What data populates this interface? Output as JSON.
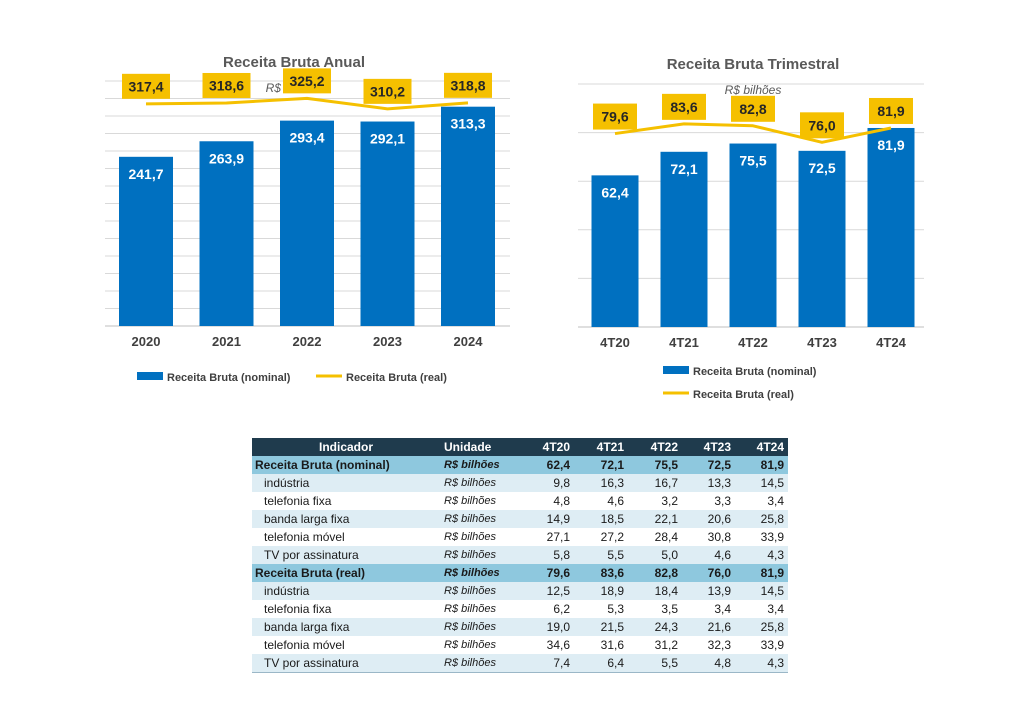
{
  "chart_data": [
    {
      "type": "bar",
      "title": "Receita Bruta Anual",
      "subtitle": "R$ bilhões",
      "categories": [
        "2020",
        "2021",
        "2022",
        "2023",
        "2024"
      ],
      "series": [
        {
          "name": "Receita Bruta (nominal)",
          "type": "bar",
          "color": "#0070c0",
          "values": [
            241.7,
            263.9,
            293.4,
            292.1,
            313.3
          ],
          "labels": [
            "241,7",
            "263,9",
            "293,4",
            "292,1",
            "313,3"
          ]
        },
        {
          "name": "Receita Bruta (real)",
          "type": "line",
          "color": "#f5c000",
          "values": [
            317.4,
            318.6,
            325.2,
            310.2,
            318.8
          ],
          "labels": [
            "317,4",
            "318,6",
            "325,2",
            "310,2",
            "318,8"
          ]
        }
      ],
      "ylim": [
        0,
        350
      ],
      "grid": true,
      "legend": "bottom"
    },
    {
      "type": "bar",
      "title": "Receita Bruta Trimestral",
      "subtitle": "R$ bilhões",
      "categories": [
        "4T20",
        "4T21",
        "4T22",
        "4T23",
        "4T24"
      ],
      "series": [
        {
          "name": "Receita Bruta (nominal)",
          "type": "bar",
          "color": "#0070c0",
          "values": [
            62.4,
            72.1,
            75.5,
            72.5,
            81.9
          ],
          "labels": [
            "62,4",
            "72,1",
            "75,5",
            "72,5",
            "81,9"
          ]
        },
        {
          "name": "Receita Bruta (real)",
          "type": "line",
          "color": "#f5c000",
          "values": [
            79.6,
            83.6,
            82.8,
            76.0,
            81.9
          ],
          "labels": [
            "79,6",
            "83,6",
            "82,8",
            "76,0",
            "81,9"
          ]
        }
      ],
      "ylim": [
        0,
        100
      ],
      "grid": true,
      "legend": "bottom"
    },
    {
      "type": "table",
      "columns": [
        "Indicador",
        "Unidade",
        "4T20",
        "4T21",
        "4T22",
        "4T23",
        "4T24"
      ],
      "rows": [
        {
          "label": "Receita Bruta (nominal)",
          "unit": "R$ bilhões",
          "values": [
            "62,4",
            "72,1",
            "75,5",
            "72,5",
            "81,9"
          ],
          "group": true
        },
        {
          "label": "indústria",
          "unit": "R$ bilhões",
          "values": [
            "9,8",
            "16,3",
            "16,7",
            "13,3",
            "14,5"
          ]
        },
        {
          "label": "telefonia fixa",
          "unit": "R$ bilhões",
          "values": [
            "4,8",
            "4,6",
            "3,2",
            "3,3",
            "3,4"
          ]
        },
        {
          "label": "banda larga fixa",
          "unit": "R$ bilhões",
          "values": [
            "14,9",
            "18,5",
            "22,1",
            "20,6",
            "25,8"
          ]
        },
        {
          "label": "telefonia móvel",
          "unit": "R$ bilhões",
          "values": [
            "27,1",
            "27,2",
            "28,4",
            "30,8",
            "33,9"
          ]
        },
        {
          "label": "TV por assinatura",
          "unit": "R$ bilhões",
          "values": [
            "5,8",
            "5,5",
            "5,0",
            "4,6",
            "4,3"
          ]
        },
        {
          "label": "Receita Bruta (real)",
          "unit": "R$ bilhões",
          "values": [
            "79,6",
            "83,6",
            "82,8",
            "76,0",
            "81,9"
          ],
          "group": true
        },
        {
          "label": "indústria",
          "unit": "R$ bilhões",
          "values": [
            "12,5",
            "18,9",
            "18,4",
            "13,9",
            "14,5"
          ]
        },
        {
          "label": "telefonia fixa",
          "unit": "R$ bilhões",
          "values": [
            "6,2",
            "5,3",
            "3,5",
            "3,4",
            "3,4"
          ]
        },
        {
          "label": "banda larga fixa",
          "unit": "R$ bilhões",
          "values": [
            "19,0",
            "21,5",
            "24,3",
            "21,6",
            "25,8"
          ]
        },
        {
          "label": "telefonia móvel",
          "unit": "R$ bilhões",
          "values": [
            "34,6",
            "31,6",
            "31,2",
            "32,3",
            "33,9"
          ]
        },
        {
          "label": "TV por assinatura",
          "unit": "R$ bilhões",
          "values": [
            "7,4",
            "6,4",
            "5,5",
            "4,8",
            "4,3"
          ]
        }
      ]
    }
  ]
}
